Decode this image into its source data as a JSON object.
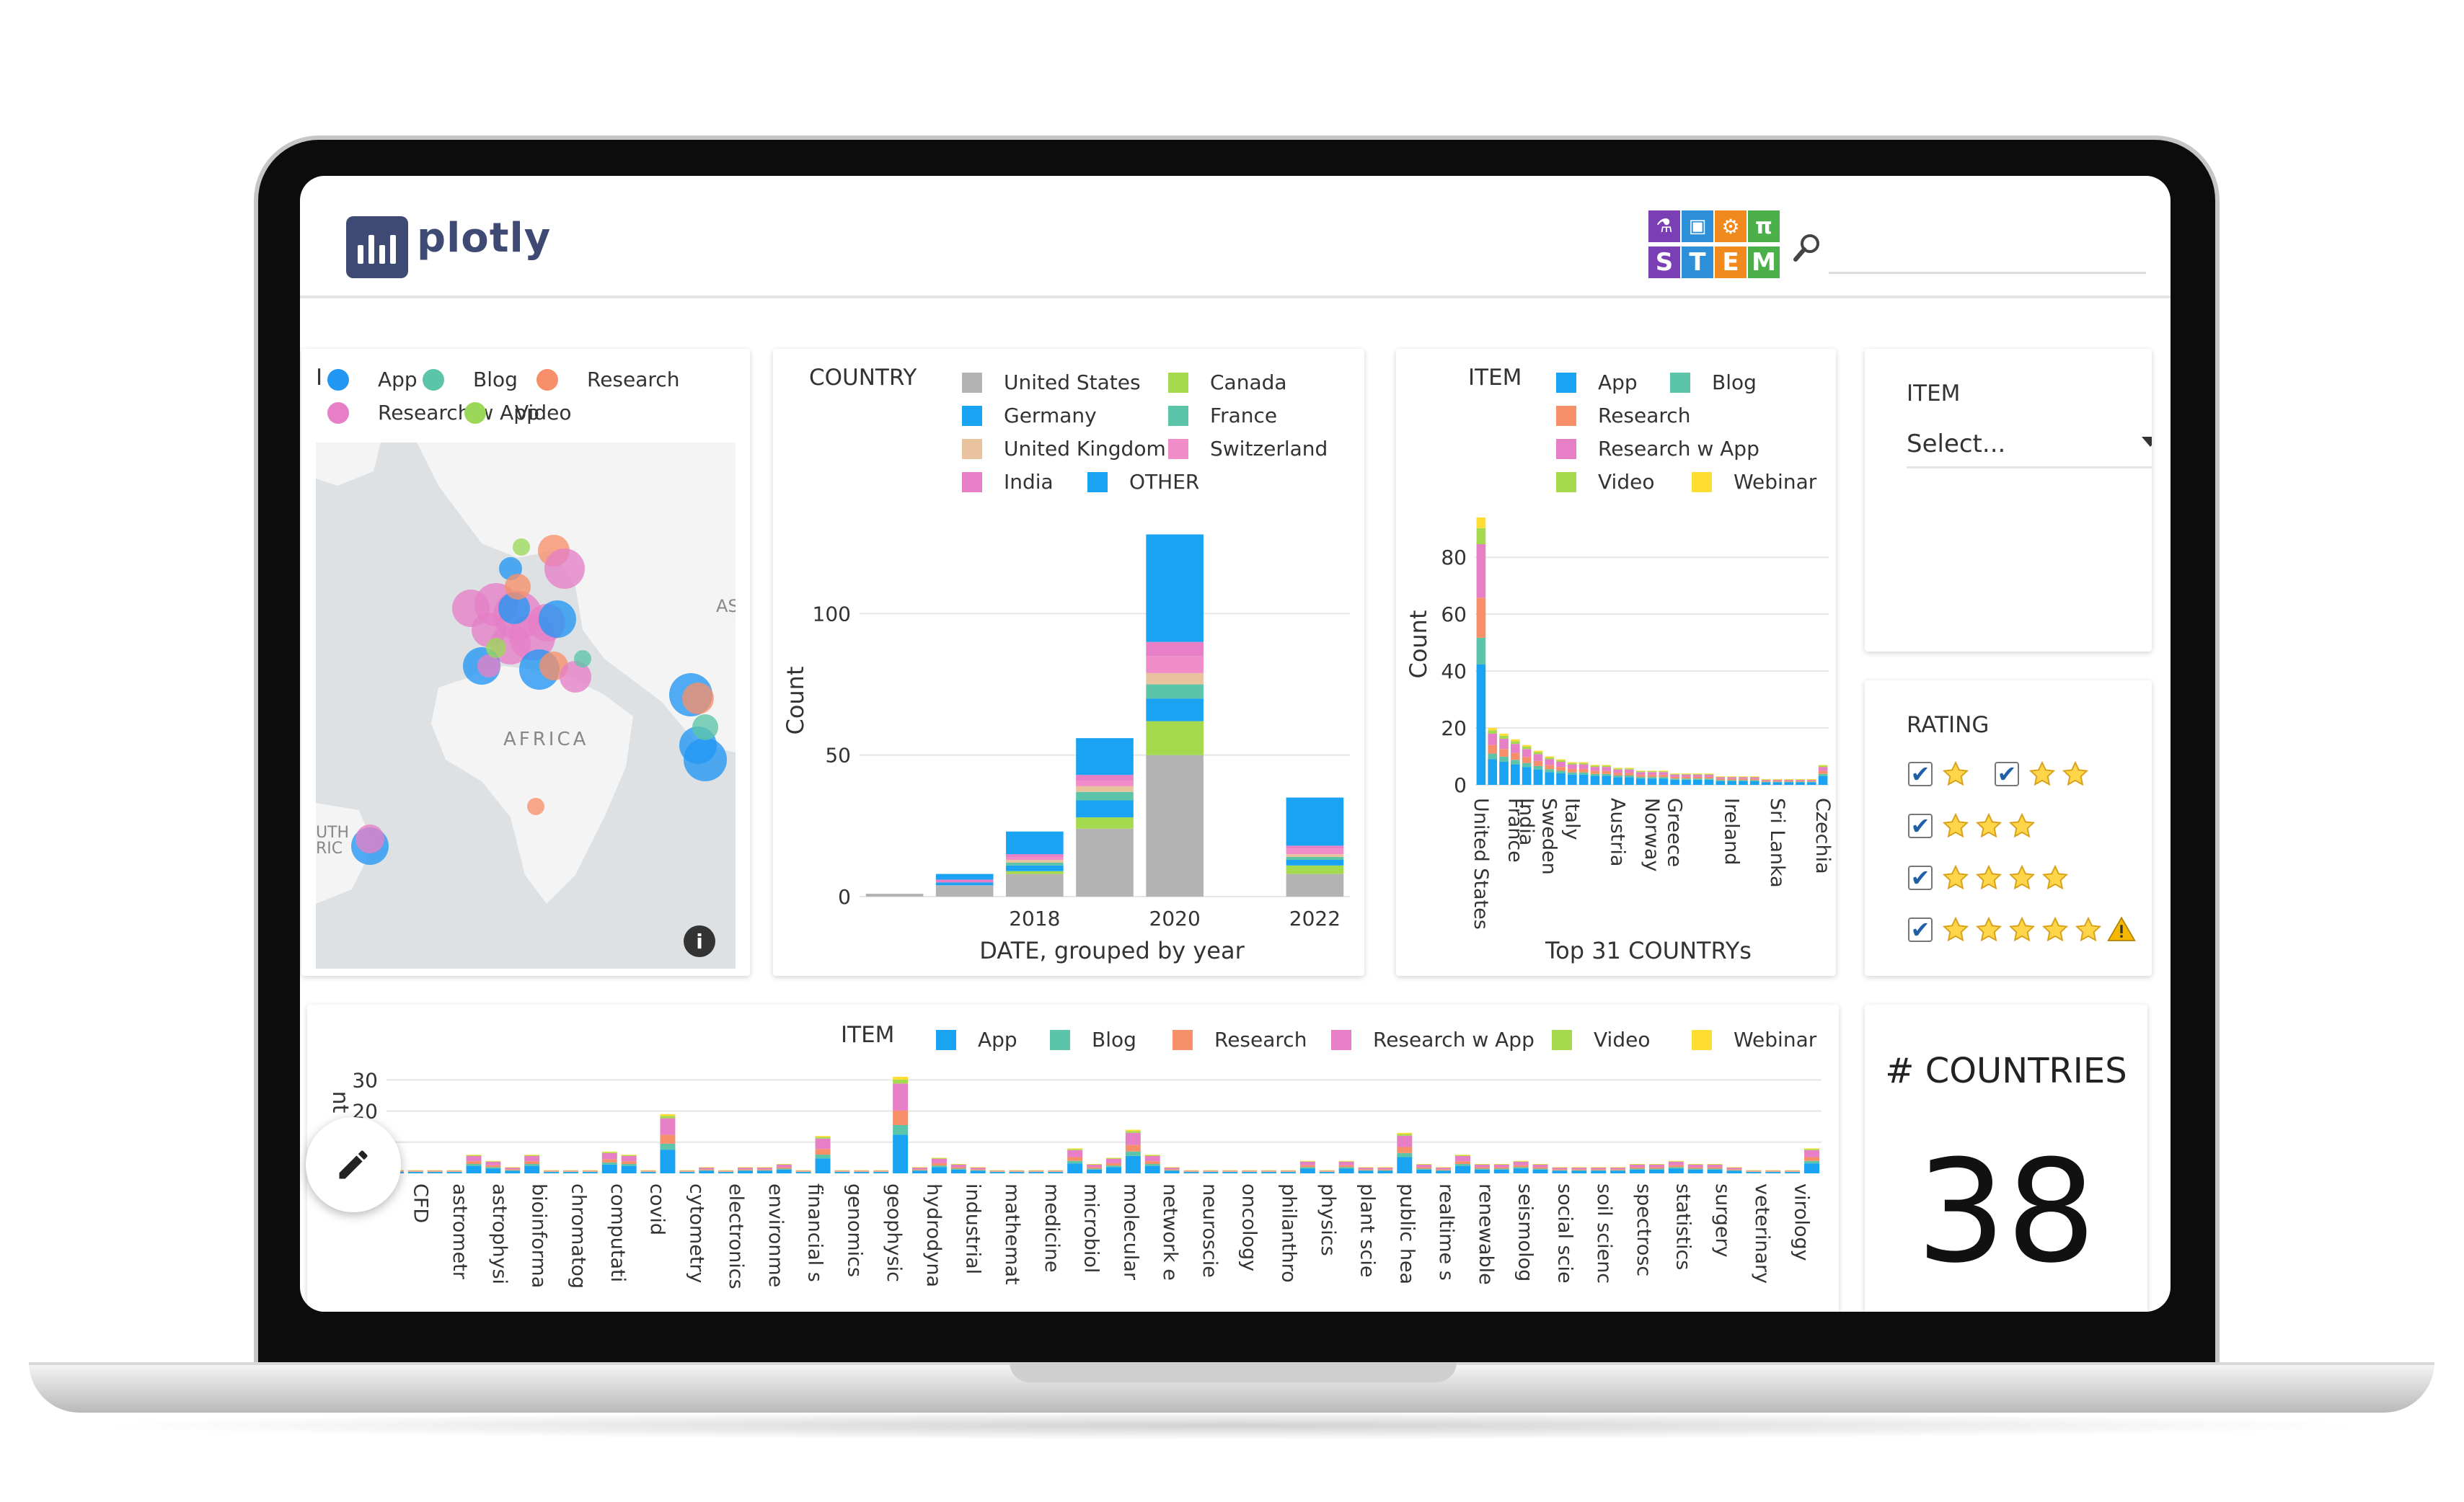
{
  "header": {
    "brand_name": "plotly",
    "stem_letters": [
      "S",
      "T",
      "E",
      "M"
    ],
    "search_placeholder": ""
  },
  "map_panel": {
    "legend_title": "I",
    "legend": [
      {
        "label": "App",
        "color": "#2196f3"
      },
      {
        "label": "Blog",
        "color": "#5cc4a8"
      },
      {
        "label": "Research",
        "color": "#f7906a"
      },
      {
        "label": "Research w App",
        "color": "#e67fc6"
      },
      {
        "label": "Video",
        "color": "#9bd85a"
      }
    ],
    "map_labels": {
      "asia": "AS",
      "africa": "AFRICA",
      "south_america_1": "UTH",
      "south_america_2": "RIC"
    }
  },
  "country_chart": {
    "legend_title": "COUNTRY",
    "legend": [
      {
        "label": "United States",
        "color": "#b3b3b3"
      },
      {
        "label": "Canada",
        "color": "#a5d94e"
      },
      {
        "label": "Germany",
        "color": "#1aa3f2"
      },
      {
        "label": "France",
        "color": "#5cc4a8"
      },
      {
        "label": "United Kingdom",
        "color": "#e8c39e"
      },
      {
        "label": "Switzerland",
        "color": "#f08cc8"
      },
      {
        "label": "India",
        "color": "#e67fc6"
      },
      {
        "label": "OTHER",
        "color": "#1aa3f2"
      }
    ],
    "chart_data": {
      "type": "bar",
      "stacked": true,
      "xlabel": "DATE, grouped by year",
      "ylabel": "Count",
      "x_tick_labels": [
        "2018",
        "2020",
        "2022"
      ],
      "y_ticks": [
        0,
        50,
        100
      ],
      "ylim": [
        0,
        135
      ],
      "categories": [
        "2016",
        "2017",
        "2018",
        "2019",
        "2020",
        "2021",
        "2022"
      ],
      "series": [
        {
          "name": "United States",
          "values": [
            1,
            4,
            8,
            24,
            50,
            0,
            8
          ]
        },
        {
          "name": "Canada",
          "values": [
            0,
            0,
            1,
            4,
            12,
            0,
            3
          ]
        },
        {
          "name": "Germany",
          "values": [
            0,
            1,
            2,
            6,
            8,
            0,
            2
          ]
        },
        {
          "name": "France",
          "values": [
            0,
            0,
            1,
            3,
            5,
            0,
            1
          ]
        },
        {
          "name": "United Kingdom",
          "values": [
            0,
            0,
            1,
            2,
            4,
            0,
            1
          ]
        },
        {
          "name": "Switzerland",
          "values": [
            0,
            0,
            1,
            2,
            6,
            0,
            2
          ]
        },
        {
          "name": "India",
          "values": [
            0,
            1,
            1,
            2,
            5,
            0,
            1
          ]
        },
        {
          "name": "OTHER",
          "values": [
            0,
            2,
            8,
            13,
            38,
            0,
            17
          ]
        }
      ]
    }
  },
  "item_country_chart": {
    "legend_title": "ITEM",
    "legend": [
      {
        "label": "App",
        "color": "#1aa3f2"
      },
      {
        "label": "Blog",
        "color": "#5cc4a8"
      },
      {
        "label": "Research",
        "color": "#f7906a"
      },
      {
        "label": "Research w App",
        "color": "#e67fc6"
      },
      {
        "label": "Video",
        "color": "#a5d94e"
      },
      {
        "label": "Webinar",
        "color": "#ffdd33"
      }
    ],
    "chart_data": {
      "type": "bar",
      "stacked": true,
      "xlabel": "Top 31 COUNTRYs",
      "ylabel": "Count",
      "y_ticks": [
        0,
        20,
        40,
        60,
        80
      ],
      "ylim": [
        0,
        95
      ],
      "categories": [
        "United States",
        "France",
        "India",
        "Sweden",
        "Italy",
        "Austria",
        "Norway",
        "Greece",
        "Ireland",
        "Sri Lanka",
        "Czechia"
      ],
      "bar_totals": [
        94,
        20,
        18,
        16,
        14,
        12,
        10,
        9,
        8,
        8,
        7,
        7,
        6,
        6,
        5,
        5,
        5,
        4,
        4,
        4,
        4,
        3,
        3,
        3,
        3,
        2,
        2,
        2,
        2,
        2,
        7
      ],
      "tick_indices": [
        0,
        3,
        4,
        6,
        8,
        12,
        15,
        17,
        22,
        26,
        30
      ]
    }
  },
  "item_dropdown": {
    "label": "ITEM",
    "value": "Select..."
  },
  "rating_panel": {
    "label": "RATING",
    "rows": [
      {
        "stars": 1,
        "checked": true
      },
      {
        "stars": 2,
        "checked": true
      },
      {
        "stars": 3,
        "checked": true
      },
      {
        "stars": 4,
        "checked": true
      },
      {
        "stars": 5,
        "checked": true,
        "warning": true
      }
    ],
    "check_glyph": "✔"
  },
  "field_chart": {
    "legend_title": "ITEM",
    "legend": [
      {
        "label": "App",
        "color": "#1aa3f2"
      },
      {
        "label": "Blog",
        "color": "#5cc4a8"
      },
      {
        "label": "Research",
        "color": "#f7906a"
      },
      {
        "label": "Research w App",
        "color": "#e67fc6"
      },
      {
        "label": "Video",
        "color": "#a5d94e"
      },
      {
        "label": "Webinar",
        "color": "#ffdd33"
      }
    ],
    "chart_data": {
      "type": "bar",
      "stacked": true,
      "ylabel": "nt",
      "y_ticks": [
        20,
        30
      ],
      "ylim": [
        0,
        31
      ],
      "categories": [
        "CFD",
        "astrometr",
        "astrophysi",
        "bioinforma",
        "chromatog",
        "computati",
        "covid",
        "cytometry",
        "electronics",
        "environme",
        "financial s",
        "genomics",
        "geophysic",
        "hydrodyna",
        "industrial",
        "mathemat",
        "medicine",
        "microbiol",
        "molecular",
        "network e",
        "neuroscie",
        "oncology",
        "philanthro",
        "physics",
        "plant scie",
        "public hea",
        "realtime s",
        "renewable",
        "seismolog",
        "social scie",
        "soil scienc",
        "spectrosc",
        "statistics",
        "surgery",
        "veterinary",
        "virology"
      ],
      "bar_totals": [
        1,
        1,
        1,
        1,
        6,
        4,
        2,
        6,
        1,
        1,
        1,
        7,
        6,
        1,
        19,
        1,
        2,
        1,
        2,
        2,
        3,
        1,
        12,
        1,
        1,
        1,
        31,
        2,
        5,
        3,
        2,
        1,
        1,
        1,
        1,
        8,
        3,
        5,
        14,
        6,
        2,
        1,
        1,
        1,
        1,
        1,
        1,
        4,
        1,
        4,
        2,
        2,
        13,
        3,
        2,
        6,
        3,
        3,
        4,
        3,
        2,
        2,
        2,
        2,
        3,
        3,
        4,
        3,
        3,
        2,
        1,
        1,
        1,
        8
      ]
    }
  },
  "countries_panel": {
    "label": "# COUNTRIES",
    "value": "38"
  },
  "edit_button": {
    "icon": "pencil-icon"
  }
}
